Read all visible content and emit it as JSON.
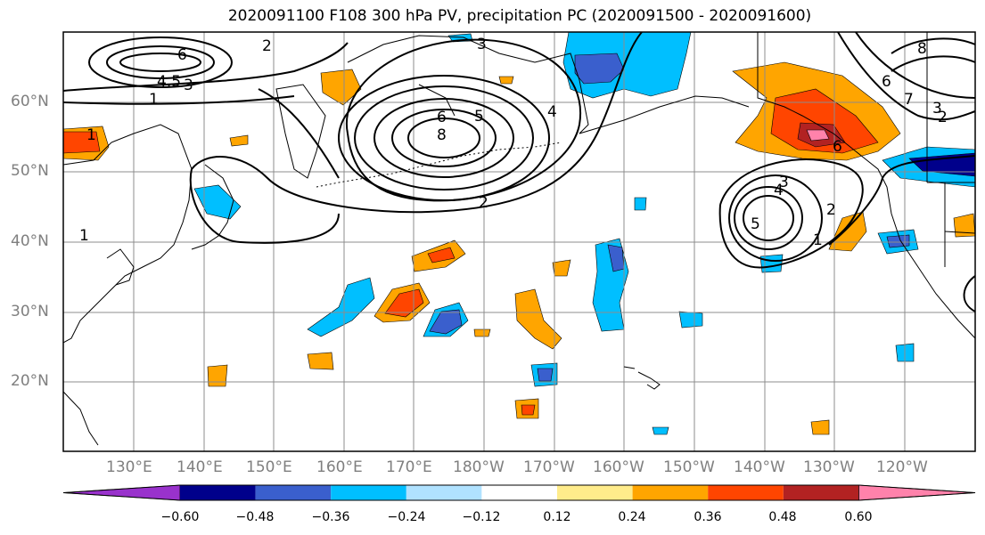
{
  "title": "2020091100 F108 300 hPa PV, precipitation PC (2020091500 - 2020091600)",
  "lat_labels": [
    "60°N",
    "50°N",
    "40°N",
    "30°N",
    "20°N"
  ],
  "lon_labels": [
    "130°E",
    "140°E",
    "150°E",
    "160°E",
    "170°E",
    "180°W",
    "170°W",
    "160°W",
    "150°W",
    "140°W",
    "130°W",
    "120°W"
  ],
  "colorbar": {
    "tick_labels": [
      "−0.60",
      "−0.48",
      "−0.36",
      "−0.24",
      "−0.12",
      "0.12",
      "0.24",
      "0.36",
      "0.48",
      "0.60"
    ],
    "colors": [
      "#9932cc",
      "#00008b",
      "#3a5fcd",
      "#00bfff",
      "#b0e2ff",
      "#ffffff",
      "#ffec8b",
      "#ffa500",
      "#ff4500",
      "#b22222",
      "#ff82ab"
    ]
  },
  "contour_labels": [
    "6",
    "4.5",
    "3",
    "1",
    "2",
    "3",
    "6",
    "5",
    "8",
    "2",
    "1",
    "1",
    "4",
    "3",
    "2",
    "1",
    "5",
    "6",
    "7",
    "3",
    "2",
    "4",
    "8",
    "6"
  ],
  "colors": {
    "land_outline": "#000000",
    "grid": "#8c8c8c",
    "pv_contour": "#000000"
  }
}
